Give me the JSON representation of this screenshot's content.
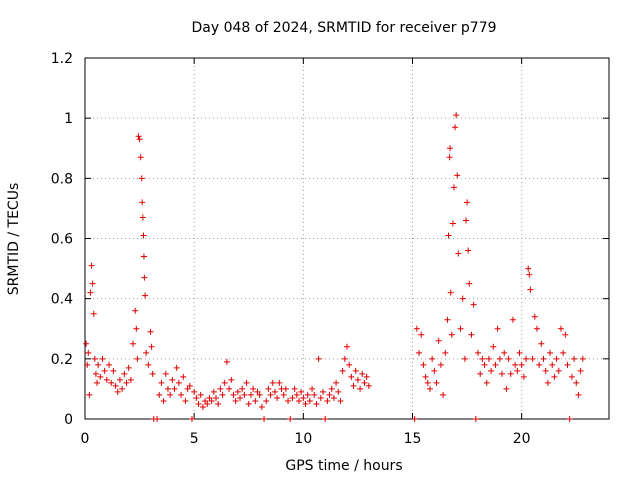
{
  "chart_data": {
    "type": "scatter",
    "title": "Day 048 of 2024, SRMTID for receiver p779",
    "xlabel": "GPS time / hours",
    "ylabel": "SRMTID / TECUs",
    "xlim": [
      0,
      24
    ],
    "ylim": [
      0,
      1.2
    ],
    "xticks": [
      0,
      5,
      10,
      15,
      20
    ],
    "yticks": [
      0,
      0.2,
      0.4,
      0.6,
      0.8,
      1,
      1.2
    ],
    "xtick_labels": [
      "0",
      "5",
      "10",
      "15",
      "20"
    ],
    "ytick_labels": [
      "0",
      "0.2",
      "0.4",
      "0.6",
      "0.8",
      "1",
      "1.2"
    ],
    "grid": true,
    "marker": "+",
    "color": "#e00000",
    "series": [
      {
        "name": "SRMTID",
        "points": [
          [
            0.05,
            0.25
          ],
          [
            0.1,
            0.18
          ],
          [
            0.15,
            0.22
          ],
          [
            0.2,
            0.08
          ],
          [
            0.25,
            0.42
          ],
          [
            0.3,
            0.51
          ],
          [
            0.35,
            0.45
          ],
          [
            0.4,
            0.35
          ],
          [
            0.45,
            0.2
          ],
          [
            0.5,
            0.15
          ],
          [
            0.55,
            0.12
          ],
          [
            0.6,
            0.18
          ],
          [
            0.7,
            0.14
          ],
          [
            0.8,
            0.2
          ],
          [
            0.9,
            0.16
          ],
          [
            1.0,
            0.13
          ],
          [
            1.1,
            0.18
          ],
          [
            1.2,
            0.12
          ],
          [
            1.3,
            0.16
          ],
          [
            1.4,
            0.11
          ],
          [
            1.5,
            0.09
          ],
          [
            1.6,
            0.13
          ],
          [
            1.7,
            0.1
          ],
          [
            1.8,
            0.15
          ],
          [
            1.9,
            0.12
          ],
          [
            2.0,
            0.17
          ],
          [
            2.1,
            0.13
          ],
          [
            2.2,
            0.25
          ],
          [
            2.3,
            0.36
          ],
          [
            2.35,
            0.3
          ],
          [
            2.4,
            0.2
          ],
          [
            2.45,
            0.94
          ],
          [
            2.5,
            0.93
          ],
          [
            2.55,
            0.87
          ],
          [
            2.6,
            0.8
          ],
          [
            2.62,
            0.72
          ],
          [
            2.65,
            0.67
          ],
          [
            2.68,
            0.61
          ],
          [
            2.7,
            0.54
          ],
          [
            2.72,
            0.47
          ],
          [
            2.75,
            0.41
          ],
          [
            2.8,
            0.22
          ],
          [
            2.9,
            0.18
          ],
          [
            3.0,
            0.29
          ],
          [
            3.05,
            0.24
          ],
          [
            3.1,
            0.15
          ],
          [
            3.15,
            0.0
          ],
          [
            3.3,
            0.0
          ],
          [
            3.4,
            0.08
          ],
          [
            3.5,
            0.12
          ],
          [
            3.6,
            0.06
          ],
          [
            3.7,
            0.15
          ],
          [
            3.8,
            0.1
          ],
          [
            3.9,
            0.08
          ],
          [
            4.0,
            0.13
          ],
          [
            4.1,
            0.1
          ],
          [
            4.2,
            0.17
          ],
          [
            4.3,
            0.12
          ],
          [
            4.4,
            0.08
          ],
          [
            4.5,
            0.14
          ],
          [
            4.6,
            0.06
          ],
          [
            4.7,
            0.1
          ],
          [
            4.8,
            0.11
          ],
          [
            4.9,
            0.0
          ],
          [
            5.0,
            0.09
          ],
          [
            5.1,
            0.07
          ],
          [
            5.2,
            0.05
          ],
          [
            5.3,
            0.08
          ],
          [
            5.4,
            0.04
          ],
          [
            5.5,
            0.06
          ],
          [
            5.6,
            0.05
          ],
          [
            5.7,
            0.07
          ],
          [
            5.8,
            0.06
          ],
          [
            5.9,
            0.09
          ],
          [
            6.0,
            0.07
          ],
          [
            6.1,
            0.05
          ],
          [
            6.2,
            0.1
          ],
          [
            6.3,
            0.08
          ],
          [
            6.4,
            0.12
          ],
          [
            6.5,
            0.19
          ],
          [
            6.6,
            0.1
          ],
          [
            6.7,
            0.13
          ],
          [
            6.8,
            0.08
          ],
          [
            6.9,
            0.06
          ],
          [
            7.0,
            0.09
          ],
          [
            7.1,
            0.07
          ],
          [
            7.2,
            0.1
          ],
          [
            7.3,
            0.08
          ],
          [
            7.4,
            0.12
          ],
          [
            7.5,
            0.05
          ],
          [
            7.6,
            0.08
          ],
          [
            7.7,
            0.1
          ],
          [
            7.8,
            0.06
          ],
          [
            7.9,
            0.09
          ],
          [
            8.0,
            0.08
          ],
          [
            8.1,
            0.04
          ],
          [
            8.2,
            0.0
          ],
          [
            8.3,
            0.06
          ],
          [
            8.4,
            0.1
          ],
          [
            8.5,
            0.08
          ],
          [
            8.6,
            0.12
          ],
          [
            8.7,
            0.09
          ],
          [
            8.8,
            0.07
          ],
          [
            8.9,
            0.12
          ],
          [
            9.0,
            0.1
          ],
          [
            9.1,
            0.08
          ],
          [
            9.2,
            0.1
          ],
          [
            9.3,
            0.06
          ],
          [
            9.4,
            0.0
          ],
          [
            9.5,
            0.07
          ],
          [
            9.6,
            0.1
          ],
          [
            9.7,
            0.08
          ],
          [
            9.8,
            0.06
          ],
          [
            9.9,
            0.09
          ],
          [
            10.0,
            0.07
          ],
          [
            10.1,
            0.05
          ],
          [
            10.2,
            0.08
          ],
          [
            10.3,
            0.06
          ],
          [
            10.4,
            0.1
          ],
          [
            10.5,
            0.08
          ],
          [
            10.6,
            0.05
          ],
          [
            10.7,
            0.2
          ],
          [
            10.8,
            0.07
          ],
          [
            10.9,
            0.09
          ],
          [
            11.0,
            0.0
          ],
          [
            11.1,
            0.06
          ],
          [
            11.2,
            0.08
          ],
          [
            11.3,
            0.1
          ],
          [
            11.4,
            0.07
          ],
          [
            11.5,
            0.12
          ],
          [
            11.6,
            0.09
          ],
          [
            11.7,
            0.06
          ],
          [
            11.8,
            0.16
          ],
          [
            11.9,
            0.2
          ],
          [
            12.0,
            0.24
          ],
          [
            12.1,
            0.18
          ],
          [
            12.2,
            0.14
          ],
          [
            12.3,
            0.11
          ],
          [
            12.4,
            0.16
          ],
          [
            12.5,
            0.13
          ],
          [
            12.6,
            0.1
          ],
          [
            12.7,
            0.15
          ],
          [
            12.8,
            0.12
          ],
          [
            12.9,
            0.14
          ],
          [
            13.0,
            0.11
          ],
          [
            15.1,
            0.0
          ],
          [
            15.2,
            0.3
          ],
          [
            15.3,
            0.22
          ],
          [
            15.4,
            0.28
          ],
          [
            15.5,
            0.18
          ],
          [
            15.6,
            0.14
          ],
          [
            15.7,
            0.12
          ],
          [
            15.8,
            0.1
          ],
          [
            15.9,
            0.2
          ],
          [
            16.0,
            0.16
          ],
          [
            16.1,
            0.12
          ],
          [
            16.2,
            0.26
          ],
          [
            16.3,
            0.18
          ],
          [
            16.4,
            0.08
          ],
          [
            16.5,
            0.22
          ],
          [
            16.6,
            0.33
          ],
          [
            16.65,
            0.61
          ],
          [
            16.7,
            0.87
          ],
          [
            16.72,
            0.9
          ],
          [
            16.75,
            0.42
          ],
          [
            16.8,
            0.28
          ],
          [
            16.85,
            0.65
          ],
          [
            16.9,
            0.77
          ],
          [
            16.95,
            0.97
          ],
          [
            17.0,
            1.01
          ],
          [
            17.05,
            0.81
          ],
          [
            17.1,
            0.55
          ],
          [
            17.2,
            0.3
          ],
          [
            17.3,
            0.4
          ],
          [
            17.4,
            0.2
          ],
          [
            17.45,
            0.66
          ],
          [
            17.5,
            0.72
          ],
          [
            17.55,
            0.56
          ],
          [
            17.6,
            0.45
          ],
          [
            17.7,
            0.28
          ],
          [
            17.8,
            0.38
          ],
          [
            17.9,
            0.0
          ],
          [
            18.0,
            0.22
          ],
          [
            18.1,
            0.15
          ],
          [
            18.2,
            0.2
          ],
          [
            18.3,
            0.18
          ],
          [
            18.4,
            0.12
          ],
          [
            18.5,
            0.2
          ],
          [
            18.6,
            0.16
          ],
          [
            18.7,
            0.24
          ],
          [
            18.8,
            0.18
          ],
          [
            18.9,
            0.3
          ],
          [
            19.0,
            0.2
          ],
          [
            19.1,
            0.15
          ],
          [
            19.2,
            0.22
          ],
          [
            19.3,
            0.1
          ],
          [
            19.4,
            0.2
          ],
          [
            19.5,
            0.15
          ],
          [
            19.6,
            0.33
          ],
          [
            19.7,
            0.18
          ],
          [
            19.8,
            0.16
          ],
          [
            19.9,
            0.22
          ],
          [
            20.0,
            0.18
          ],
          [
            20.1,
            0.14
          ],
          [
            20.2,
            0.2
          ],
          [
            20.3,
            0.5
          ],
          [
            20.35,
            0.48
          ],
          [
            20.4,
            0.43
          ],
          [
            20.5,
            0.2
          ],
          [
            20.6,
            0.34
          ],
          [
            20.7,
            0.3
          ],
          [
            20.8,
            0.18
          ],
          [
            20.9,
            0.25
          ],
          [
            21.0,
            0.2
          ],
          [
            21.1,
            0.16
          ],
          [
            21.2,
            0.12
          ],
          [
            21.3,
            0.22
          ],
          [
            21.4,
            0.18
          ],
          [
            21.5,
            0.14
          ],
          [
            21.6,
            0.2
          ],
          [
            21.7,
            0.16
          ],
          [
            21.8,
            0.3
          ],
          [
            21.9,
            0.22
          ],
          [
            22.0,
            0.28
          ],
          [
            22.1,
            0.18
          ],
          [
            22.2,
            0.0
          ],
          [
            22.3,
            0.14
          ],
          [
            22.4,
            0.2
          ],
          [
            22.5,
            0.12
          ],
          [
            22.6,
            0.08
          ],
          [
            22.7,
            0.16
          ],
          [
            22.8,
            0.2
          ]
        ]
      }
    ]
  }
}
